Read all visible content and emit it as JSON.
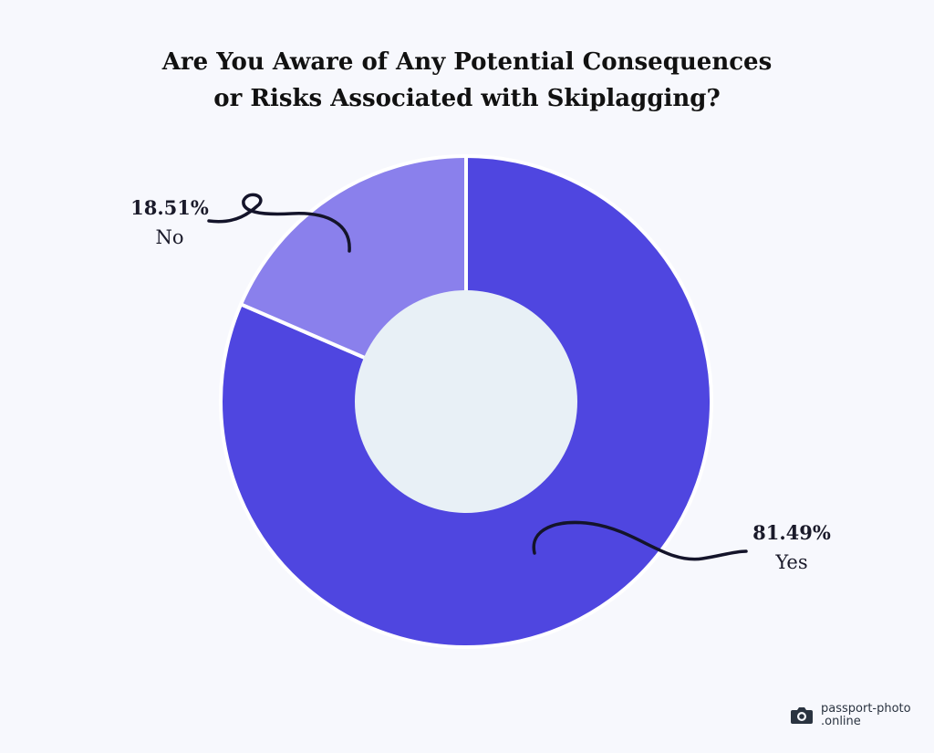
{
  "chart_data": {
    "type": "pie",
    "variant": "donut",
    "title": "Are You Aware of Any Potential Consequences or Risks Associated with Skiplagging?",
    "title_lines": [
      "Are You Aware of Any Potential Consequences",
      "or Risks Associated with Skiplagging?"
    ],
    "categories": [
      "Yes",
      "No"
    ],
    "values": [
      81.49,
      18.51
    ],
    "value_labels": [
      "81.49%",
      "18.51%"
    ],
    "colors": [
      "#4f46e0",
      "#8a80ec"
    ],
    "hole_color": "#e8f0f6",
    "legend": "none"
  },
  "branding": {
    "logo_line1": "passport-photo",
    "logo_line2": ".online",
    "icon": "camera-icon"
  }
}
